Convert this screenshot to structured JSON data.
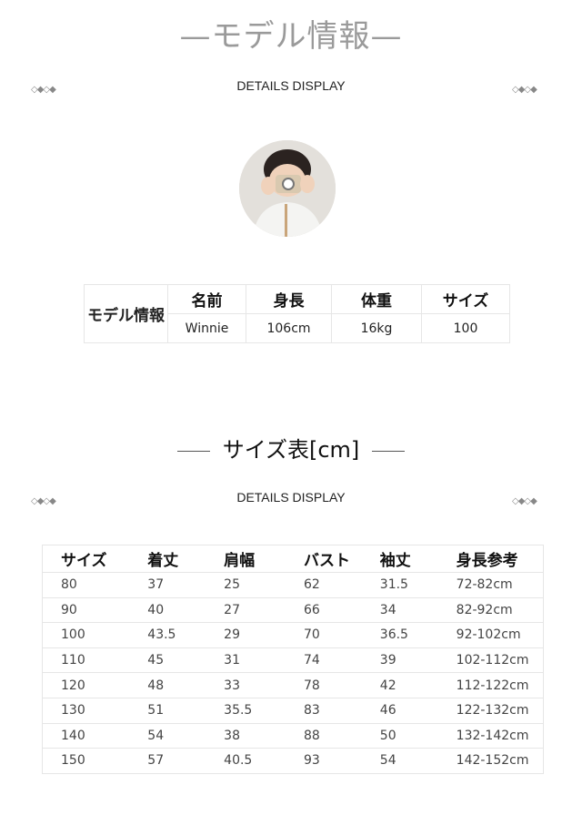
{
  "section1": {
    "title": "—モデル情報—",
    "subtitle": "DETAILS DISPLAY",
    "ornament": "◇◆◇◆"
  },
  "model_table": {
    "row_label": "モデル情報",
    "headers": [
      "名前",
      "身長",
      "体重",
      "サイズ"
    ],
    "values": [
      "Winnie",
      "106cm",
      "16kg",
      "100"
    ]
  },
  "section2": {
    "title": "サイズ表[cm]",
    "subtitle": "DETAILS DISPLAY",
    "ornament": "◇◆◇◆"
  },
  "size_table": {
    "headers": [
      "サイズ",
      "着丈",
      "肩幅",
      "バスト",
      "袖丈",
      "身長参考"
    ],
    "rows": [
      [
        "80",
        "37",
        "25",
        "62",
        "31.5",
        "72-82cm"
      ],
      [
        "90",
        "40",
        "27",
        "66",
        "34",
        "82-92cm"
      ],
      [
        "100",
        "43.5",
        "29",
        "70",
        "36.5",
        "92-102cm"
      ],
      [
        "110",
        "45",
        "31",
        "74",
        "39",
        "102-112cm"
      ],
      [
        "120",
        "48",
        "33",
        "78",
        "42",
        "112-122cm"
      ],
      [
        "130",
        "51",
        "35.5",
        "83",
        "46",
        "122-132cm"
      ],
      [
        "140",
        "54",
        "38",
        "88",
        "50",
        "132-142cm"
      ],
      [
        "150",
        "57",
        "40.5",
        "93",
        "54",
        "142-152cm"
      ]
    ]
  }
}
